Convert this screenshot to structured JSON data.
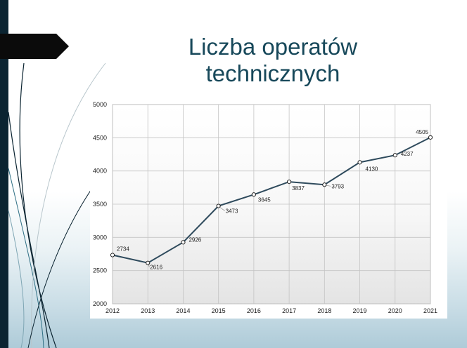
{
  "slide": {
    "title_line1": "Liczba operatów",
    "title_line2": "technicznych"
  },
  "colors": {
    "accent_dark": "#0b2431",
    "title": "#17485a",
    "series_line": "#2e4a5c"
  },
  "chart_data": {
    "type": "line",
    "title": "",
    "xlabel": "",
    "ylabel": "",
    "x": [
      "2012",
      "2013",
      "2014",
      "2015",
      "2016",
      "2017",
      "2018",
      "2019",
      "2020",
      "2021"
    ],
    "series": [
      {
        "values": [
          2734,
          2616,
          2926,
          3473,
          3645,
          3837,
          3793,
          4130,
          4237,
          4505
        ]
      }
    ],
    "y_ticks": [
      "2000",
      "2500",
      "3000",
      "3500",
      "4000",
      "4500",
      "5000"
    ],
    "ylim": [
      2000,
      5000
    ],
    "grid": true,
    "data_labels": true
  }
}
